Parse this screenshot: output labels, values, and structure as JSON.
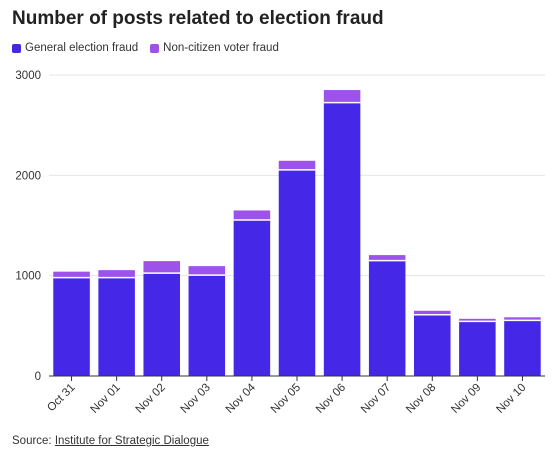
{
  "chart_data": {
    "type": "bar",
    "stacked": true,
    "title": "Number of posts related to election fraud",
    "categories": [
      "Oct 31",
      "Nov 01",
      "Nov 02",
      "Nov 03",
      "Nov 04",
      "Nov 05",
      "Nov 06",
      "Nov 07",
      "Nov 08",
      "Nov 09",
      "Nov 10"
    ],
    "series": [
      {
        "name": "General election fraud",
        "color": "#4527e8",
        "values": [
          980,
          980,
          1025,
          1005,
          1555,
          2055,
          2725,
          1150,
          610,
          545,
          555
        ]
      },
      {
        "name": "Non-citizen voter fraud",
        "color": "#9d52ea",
        "values": [
          60,
          75,
          120,
          90,
          95,
          90,
          125,
          55,
          40,
          25,
          30
        ]
      }
    ],
    "ylim": [
      0,
      3000
    ],
    "yticks": [
      0,
      1000,
      2000,
      3000
    ],
    "xlabel": "",
    "ylabel": "",
    "grid": true,
    "legend_position": "top-left"
  },
  "source": {
    "prefix": "Source: ",
    "link_text": "Institute for Strategic Dialogue"
  }
}
